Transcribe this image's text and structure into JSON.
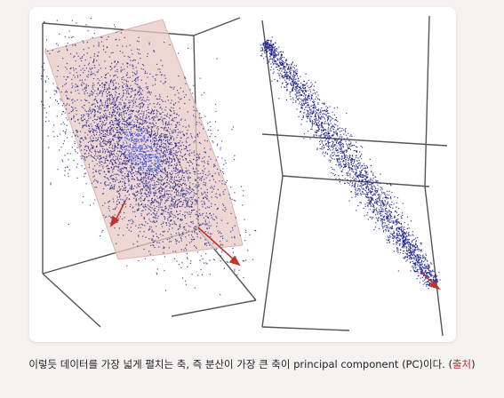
{
  "figure": {
    "caption_text": "이렇듯 데이터를 가장 넓게 펼치는 축, 즉 분산이 가장 큰 축이 principal component (PC)이다. (",
    "source_link_label": "출처",
    "caption_close": ")",
    "point_color": "#1a1f8c",
    "dense_center_color": "#2a47d8",
    "plane_color": "#e8c9c4",
    "arrow_color": "#c0342c"
  }
}
